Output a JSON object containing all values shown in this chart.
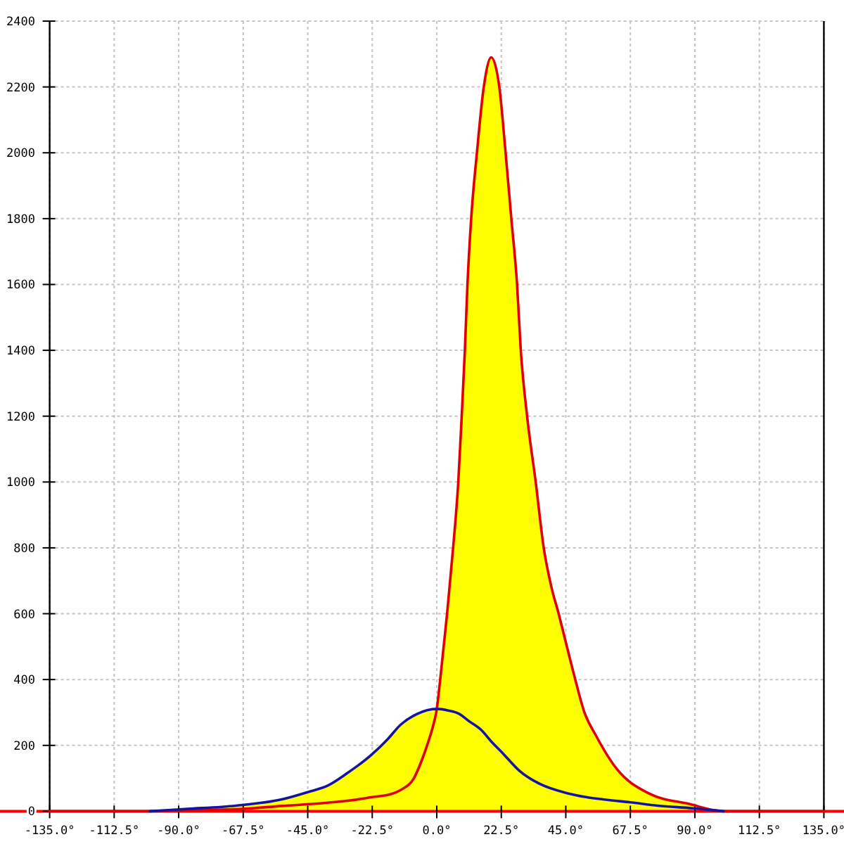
{
  "chart_data": {
    "type": "line",
    "xlim": [
      -135,
      135
    ],
    "ylim": [
      0,
      2400
    ],
    "xticks": [
      {
        "value": -135,
        "label": "-135.0°"
      },
      {
        "value": -112.5,
        "label": "-112.5°"
      },
      {
        "value": -90,
        "label": "-90.0°"
      },
      {
        "value": -67.5,
        "label": "-67.5°"
      },
      {
        "value": -45,
        "label": "-45.0°"
      },
      {
        "value": -22.5,
        "label": "-22.5°"
      },
      {
        "value": 0,
        "label": "0.0°"
      },
      {
        "value": 22.5,
        "label": "22.5°"
      },
      {
        "value": 45,
        "label": "45.0°"
      },
      {
        "value": 67.5,
        "label": "67.5°"
      },
      {
        "value": 90,
        "label": "90.0°"
      },
      {
        "value": 112.5,
        "label": "112.5°"
      },
      {
        "value": 135,
        "label": "135.0°"
      }
    ],
    "yticks": [
      0,
      200,
      400,
      600,
      800,
      1000,
      1200,
      1400,
      1600,
      1800,
      2000,
      2200,
      2400
    ],
    "grid": true,
    "series": [
      {
        "color": "#e00000",
        "x": [
          -135,
          -100,
          -85,
          -70,
          -54,
          -38,
          -30,
          -22.5,
          -16,
          -12.5,
          -8,
          -5,
          -3,
          -1.2,
          0,
          1.2,
          3.6,
          5.7,
          7.5,
          8.7,
          9.8,
          10.7,
          12,
          14,
          16.4,
          19,
          21.8,
          24,
          26,
          28,
          29.3,
          31.5,
          34.5,
          37.3,
          40,
          42.5,
          44.8,
          48,
          51.5,
          55.5,
          62.8,
          74,
          88,
          100,
          135
        ],
        "values": [
          0,
          0,
          3,
          6,
          16,
          26,
          33,
          43,
          52,
          65,
          100,
          160,
          210,
          262,
          310,
          400,
          600,
          800,
          1000,
          1200,
          1400,
          1600,
          1800,
          2000,
          2200,
          2290,
          2200,
          2000,
          1800,
          1600,
          1400,
          1200,
          1000,
          800,
          680,
          600,
          520,
          410,
          300,
          230,
          128,
          54,
          22,
          0,
          0
        ]
      },
      {
        "color": "#1414a0",
        "x": [
          -100,
          -87,
          -70,
          -54,
          -45,
          -38,
          -31.5,
          -22.7,
          -17,
          -12.7,
          -7,
          0,
          4,
          8,
          11,
          15.6,
          19,
          22.6,
          28.8,
          36.4,
          44.9,
          52,
          59,
          67.5,
          77,
          89.2,
          100
        ],
        "values": [
          0,
          7,
          17,
          36,
          58,
          78,
          114,
          172,
          220,
          262,
          295,
          311,
          306,
          295,
          275,
          246,
          212,
          180,
          123,
          81,
          56,
          43,
          35,
          27,
          17,
          9,
          0
        ]
      },
      {
        "type": "area",
        "color": "#ffff00",
        "x": [
          -100,
          -87,
          -70,
          -54,
          -45,
          -38,
          -31.5,
          -22.7,
          -17,
          -12.7,
          -7,
          0,
          1.2,
          3.6,
          5.7,
          7.5,
          8.7,
          9.8,
          10.7,
          12,
          14,
          16.4,
          19,
          21.8,
          24,
          26,
          28,
          29.3,
          31.5,
          34.5,
          37.3,
          40,
          42.5,
          44.8,
          48,
          51.5,
          55.5,
          62.8,
          74,
          88,
          100
        ],
        "values": [
          0,
          7,
          17,
          36,
          58,
          78,
          114,
          172,
          220,
          262,
          295,
          310,
          400,
          600,
          800,
          1000,
          1200,
          1400,
          1600,
          1800,
          2000,
          2200,
          2290,
          2200,
          2000,
          1800,
          1600,
          1400,
          1200,
          1000,
          800,
          680,
          600,
          520,
          410,
          300,
          230,
          128,
          54,
          22,
          0
        ]
      }
    ]
  }
}
